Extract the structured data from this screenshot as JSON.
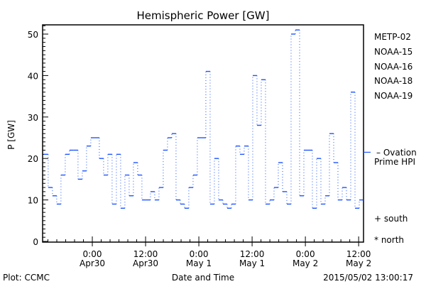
{
  "chart_data": {
    "type": "line",
    "title": "Hemispheric Power [GW]",
    "xlabel": "Date and Time",
    "ylabel": "P [GW]",
    "ylim": [
      0,
      52
    ],
    "yticks": [
      0,
      10,
      20,
      30,
      40,
      50
    ],
    "x_unit": "hours since 2015-04-29 00:00",
    "xlim": [
      12.8,
      85.1
    ],
    "xticks": [
      {
        "hour": 24,
        "time": "0:00",
        "date": "Apr30"
      },
      {
        "hour": 36,
        "time": "12:00",
        "date": "Apr30"
      },
      {
        "hour": 48,
        "time": "0:00",
        "date": "May 1"
      },
      {
        "hour": 60,
        "time": "12:00",
        "date": "May 1"
      },
      {
        "hour": 72,
        "time": "0:00",
        "date": "May 2"
      },
      {
        "hour": 84,
        "time": "12:00",
        "date": "May 2"
      }
    ],
    "series": [
      {
        "name": "NOAA-15",
        "style": "step",
        "x_start_hour": 13.1,
        "step_hours": 0.96,
        "values": [
          21,
          13,
          11,
          9,
          16,
          21,
          22,
          22,
          15,
          17,
          23,
          25,
          25,
          20,
          16,
          21,
          9,
          21,
          8,
          16,
          11,
          19,
          16,
          10,
          10,
          12,
          10,
          13,
          22,
          25,
          26,
          10,
          9,
          8,
          13,
          16,
          25,
          25,
          41,
          9,
          20,
          10,
          9,
          8,
          9,
          23,
          21,
          23,
          10,
          40,
          28,
          39,
          9,
          10,
          13,
          19,
          12,
          9,
          50,
          51,
          11,
          22,
          22,
          8,
          20,
          9,
          11,
          26,
          19,
          10,
          13,
          10,
          36,
          8,
          10
        ]
      }
    ],
    "ovation_prime_hpi": 21.5,
    "legend": {
      "placement": "right",
      "entries": [
        {
          "label": "METP-02",
          "color": "#000000"
        },
        {
          "label": "NOAA-15",
          "color": "#0022dd"
        },
        {
          "label": "NOAA-16",
          "color": "#00b4ee"
        },
        {
          "label": "NOAA-18",
          "color": "#22ee66"
        },
        {
          "label": "NOAA-19",
          "color": "#ff8a00"
        }
      ],
      "ovation_label_1": "– Ovation",
      "ovation_label_2": "Prime HPI",
      "ovation_color": "#1f55ff",
      "south_label": "+ south",
      "north_label": "* north"
    },
    "line_color": "#1f55ff"
  },
  "footer": {
    "left": "Plot: CCMC",
    "right": "2015/05/02 13:00:17"
  }
}
